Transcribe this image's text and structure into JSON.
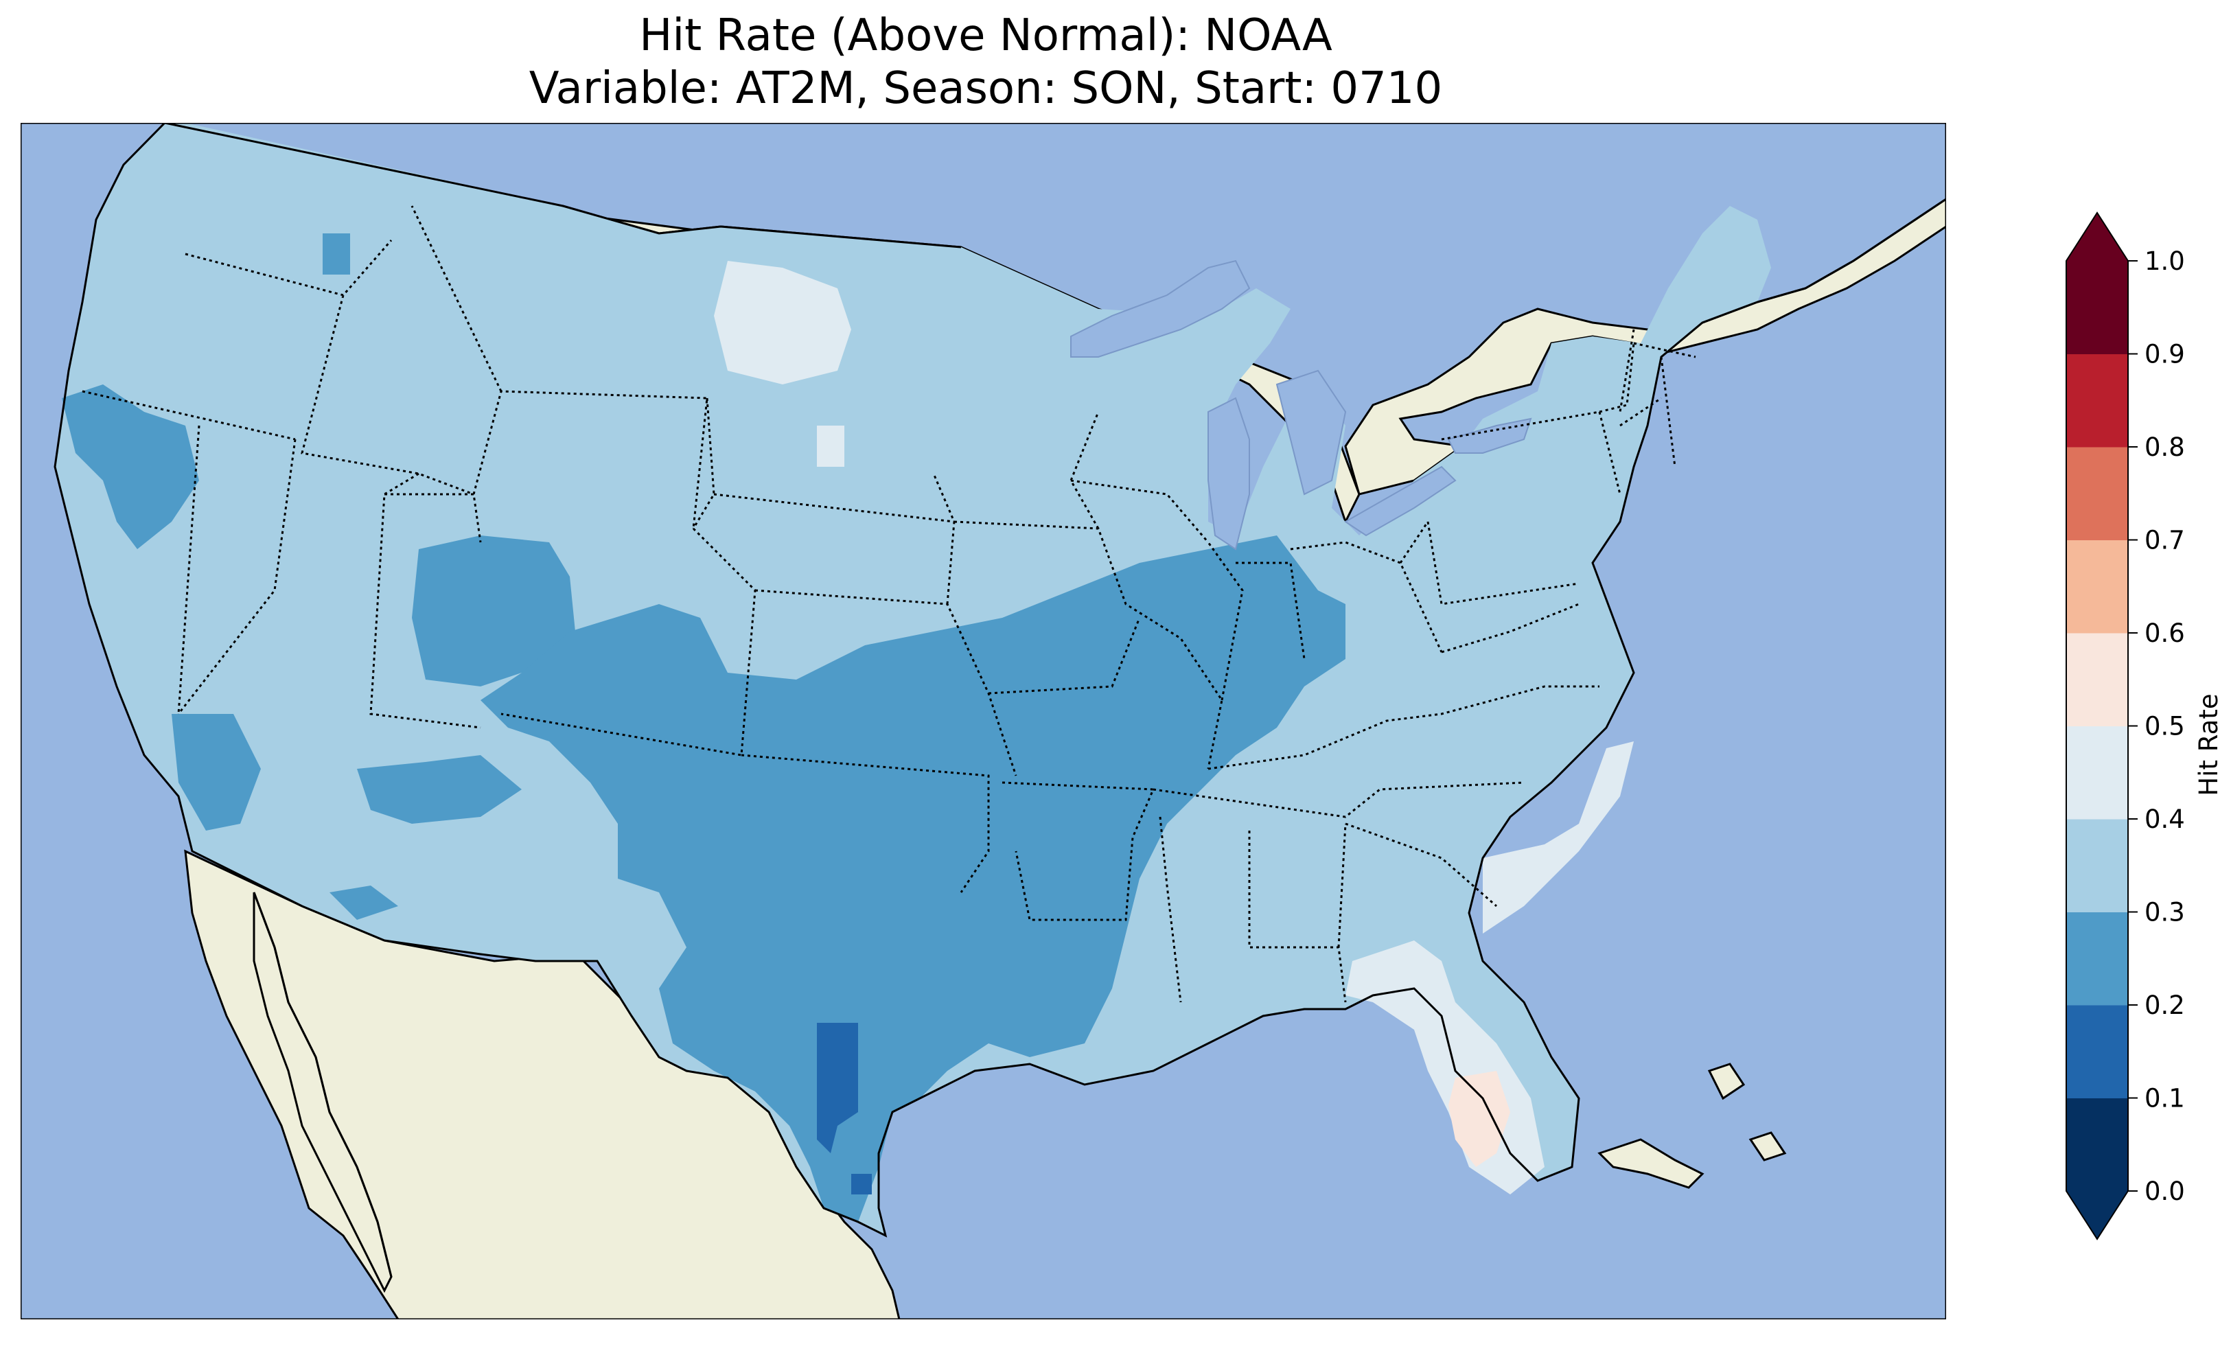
{
  "title": {
    "line1": "Hit Rate (Above Normal): NOAA",
    "line2": "Variable: AT2M, Season: SON, Start: 0710"
  },
  "colors": {
    "ocean": "#97b6e1",
    "land": "#efefdb",
    "lakes": "#97b6e1",
    "outline": "#000000"
  },
  "colorbar": {
    "label": "Hit Rate",
    "ticks": [
      "0.0",
      "0.1",
      "0.2",
      "0.3",
      "0.4",
      "0.5",
      "0.6",
      "0.7",
      "0.8",
      "0.9",
      "1.0"
    ],
    "bins": [
      {
        "range": [
          0.0,
          0.1
        ],
        "color": "#053061"
      },
      {
        "range": [
          0.1,
          0.2
        ],
        "color": "#2166ac"
      },
      {
        "range": [
          0.2,
          0.3
        ],
        "color": "#4f9bc8"
      },
      {
        "range": [
          0.3,
          0.4
        ],
        "color": "#a7cfe4"
      },
      {
        "range": [
          0.4,
          0.5
        ],
        "color": "#e0ebf2"
      },
      {
        "range": [
          0.5,
          0.6
        ],
        "color": "#f9e6dd"
      },
      {
        "range": [
          0.6,
          0.7
        ],
        "color": "#f5b999"
      },
      {
        "range": [
          0.7,
          0.8
        ],
        "color": "#de725b"
      },
      {
        "range": [
          0.8,
          0.9
        ],
        "color": "#b91f2d"
      },
      {
        "range": [
          0.9,
          1.0
        ],
        "color": "#67001f"
      }
    ],
    "extend": "both"
  },
  "map_data": {
    "region": "Contiguous United States",
    "variable": "AT2M",
    "season": "SON",
    "start": "0710",
    "model": "NOAA",
    "background_class": "0.3-0.4",
    "regions": [
      {
        "area": "Northern California coast",
        "class": "0.2-0.3"
      },
      {
        "area": "Northern Idaho / Montana border",
        "class": "0.2-0.3"
      },
      {
        "area": "Western North Dakota",
        "class": "0.4-0.5"
      },
      {
        "area": "Utah",
        "class": "0.2-0.3"
      },
      {
        "area": "Southern Nevada / Arizona",
        "class": "0.2-0.3"
      },
      {
        "area": "Colorado / Kansas / Oklahoma / Texas",
        "class": "0.2-0.3"
      },
      {
        "area": "Missouri / Arkansas / Illinois / Indiana",
        "class": "0.2-0.3"
      },
      {
        "area": "West Texas",
        "class": "0.1-0.2"
      },
      {
        "area": "Georgia / Florida / Carolinas",
        "class": "0.4-0.5"
      },
      {
        "area": "Southwest Florida",
        "class": "0.5-0.6"
      }
    ]
  }
}
